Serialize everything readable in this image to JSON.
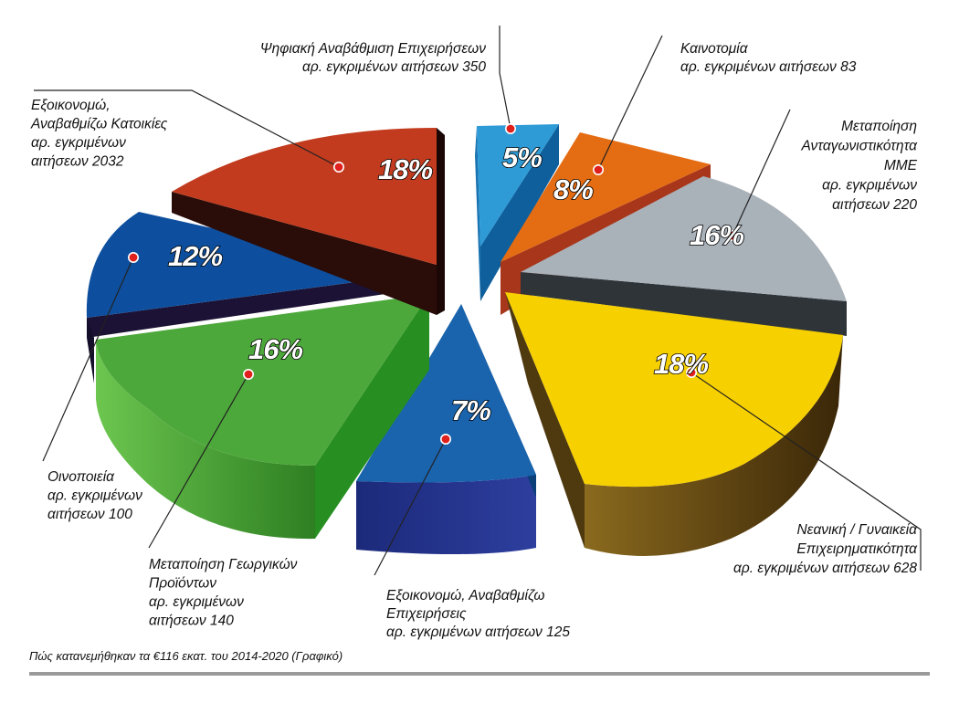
{
  "chart_data": {
    "type": "pie",
    "slices": [
      {
        "label_lines": [
          "Ψηφιακή Αναβάθμιση Επιχειρήσεων",
          "αρ. εγκριμένων αιτήσεων 350"
        ],
        "percent": "5%",
        "value": 5,
        "count": 350,
        "color": "#2e9bd6"
      },
      {
        "label_lines": [
          "Καινοτομία",
          "αρ. εγκριμένων αιτήσεων 83"
        ],
        "percent": "8%",
        "value": 8,
        "count": 83,
        "color": "#e46c12"
      },
      {
        "label_lines": [
          "Μεταποίηση",
          "Ανταγωνιστικότητα",
          "ΜΜΕ",
          "αρ. εγκριμένων",
          "αιτήσεων 220"
        ],
        "percent": "16%",
        "value": 16,
        "count": 220,
        "color": "#a9b1b9"
      },
      {
        "label_lines": [
          "Νεανική / Γυναικεία",
          "Επιχειρηματικότητα",
          "αρ. εγκριμένων αιτήσεων 628"
        ],
        "percent": "18%",
        "value": 18,
        "count": 628,
        "color": "#f7d000"
      },
      {
        "label_lines": [
          "Εξοικονομώ, Αναβαθμίζω",
          "Επιχειρήσεις",
          "αρ. εγκριμένων αιτήσεων 125"
        ],
        "percent": "7%",
        "value": 7,
        "count": 125,
        "color": "#1a63ad"
      },
      {
        "label_lines": [
          "Μεταποίηση Γεωργικών",
          "Προϊόντων",
          "αρ. εγκριμένων",
          "αιτήσεων 140"
        ],
        "percent": "16%",
        "value": 16,
        "count": 140,
        "color": "#4da83b"
      },
      {
        "label_lines": [
          "Οινοποιεία",
          "αρ. εγκριμένων",
          "αιτήσεων 100"
        ],
        "percent": "12%",
        "value": 12,
        "count": 100,
        "color": "#0d4f9e"
      },
      {
        "label_lines": [
          "Εξοικονομώ,",
          "Αναβαθμίζω Κατοικίες",
          "αρ. εγκριμένων",
          "αιτήσεων 2032"
        ],
        "percent": "18%",
        "value": 18,
        "count": 2032,
        "color": "#c23b1e"
      }
    ],
    "caption": "Πώς κατανεμήθηκαν τα €116 εκατ. του 2014-2020 (Γραφικό)"
  }
}
